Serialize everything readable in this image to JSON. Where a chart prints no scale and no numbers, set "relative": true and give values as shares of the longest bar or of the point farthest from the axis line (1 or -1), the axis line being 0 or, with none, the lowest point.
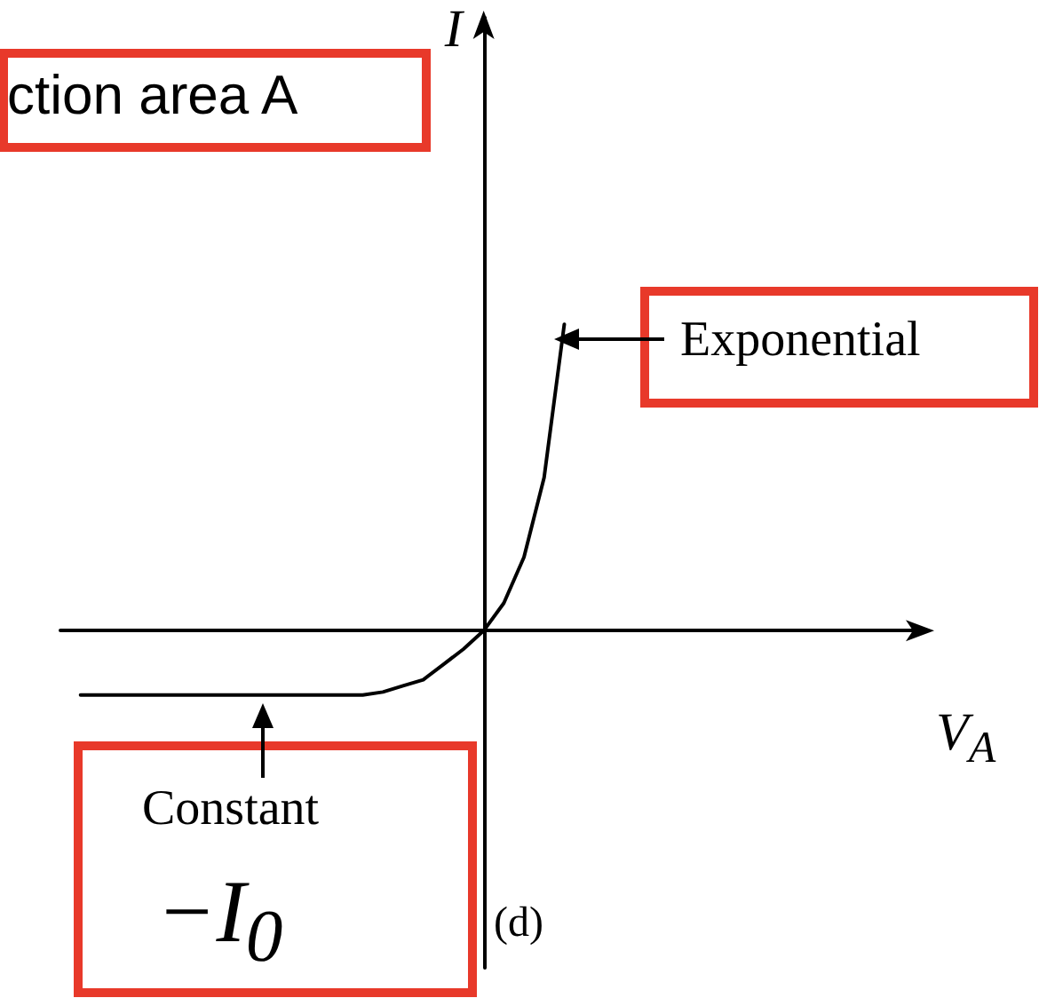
{
  "chart_data": {
    "type": "line",
    "relative": true,
    "ylabel": "I",
    "xlabel": "V$_{A}$",
    "categories": [
      null,
      null,
      null,
      null,
      null,
      null,
      null,
      null,
      null,
      null,
      null,
      null,
      null,
      null,
      null,
      null,
      null,
      null,
      null,
      null,
      null,
      null,
      null,
      null,
      null,
      null,
      null,
      null,
      null,
      null,
      null,
      null,
      null,
      null,
      null,
      null,
      null,
      null,
      null,
      null,
      null,
      null,
      null,
      null
    ],
    "series": [
      {
        "color": "#000000",
        "values": [
          null,
          -0.21,
          -0.21,
          -0.21,
          -0.21,
          -0.21,
          -0.21,
          -0.21,
          -0.21,
          -0.21,
          -0.21,
          -0.21,
          -0.21,
          -0.21,
          -0.21,
          -0.21,
          -0.2,
          -0.18,
          -0.16,
          -0.11,
          -0.06,
          0,
          0.09,
          0.24,
          0.5,
          1,
          null,
          null,
          null,
          null,
          null,
          null,
          null,
          null,
          null,
          null,
          null,
          null,
          null,
          null,
          null,
          null,
          null,
          null
        ]
      }
    ],
    "annotations": [
      "ction area A",
      "Exponential",
      "Constant",
      "−I$_{0}$",
      "(d)"
    ],
    "marker": "none",
    "line_style": "solid",
    "grid": false
  }
}
